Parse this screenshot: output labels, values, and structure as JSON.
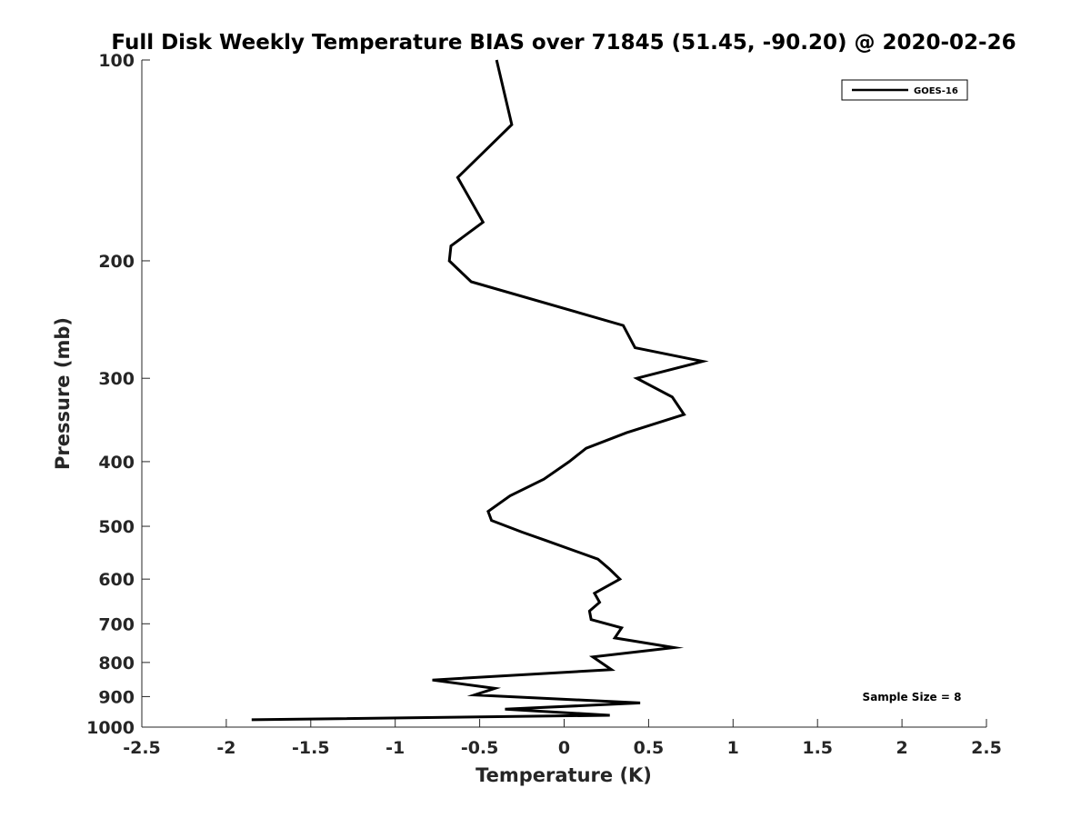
{
  "chart_data": {
    "type": "line",
    "title": "Full Disk Weekly Temperature BIAS over 71845 (51.45, -90.20) @ 2020-02-26",
    "xlabel": "Temperature (K)",
    "ylabel": "Pressure (mb)",
    "xlim": [
      -2.5,
      2.5
    ],
    "ylim": [
      100,
      1000
    ],
    "y_scale": "log",
    "y_reversed": true,
    "grid": false,
    "legend_position": "top-right",
    "x_ticks": [
      "-2.5",
      "-2",
      "-1.5",
      "-1",
      "-0.5",
      "0",
      "0.5",
      "1",
      "1.5",
      "2",
      "2.5"
    ],
    "x_tick_values": [
      -2.5,
      -2,
      -1.5,
      -1,
      -0.5,
      0,
      0.5,
      1,
      1.5,
      2,
      2.5
    ],
    "y_ticks": [
      "100",
      "200",
      "300",
      "400",
      "500",
      "600",
      "700",
      "800",
      "900",
      "1000"
    ],
    "y_tick_values": [
      100,
      200,
      300,
      400,
      500,
      600,
      700,
      800,
      900,
      1000
    ],
    "annotation": "Sample Size = 8",
    "series": [
      {
        "name": "GOES-16",
        "color": "#000000",
        "points": [
          [
            -0.4,
            100
          ],
          [
            -0.31,
            125
          ],
          [
            -0.63,
            150
          ],
          [
            -0.48,
            175
          ],
          [
            -0.67,
            190
          ],
          [
            -0.68,
            200
          ],
          [
            -0.55,
            215
          ],
          [
            0.35,
            250
          ],
          [
            0.42,
            270
          ],
          [
            0.82,
            283
          ],
          [
            0.43,
            300
          ],
          [
            0.64,
            320
          ],
          [
            0.71,
            340
          ],
          [
            0.37,
            362
          ],
          [
            0.13,
            382
          ],
          [
            0.03,
            400
          ],
          [
            -0.12,
            425
          ],
          [
            -0.32,
            450
          ],
          [
            -0.45,
            475
          ],
          [
            -0.43,
            490
          ],
          [
            -0.25,
            510
          ],
          [
            -0.11,
            525
          ],
          [
            0.2,
            560
          ],
          [
            0.27,
            580
          ],
          [
            0.33,
            600
          ],
          [
            0.18,
            630
          ],
          [
            0.21,
            650
          ],
          [
            0.15,
            670
          ],
          [
            0.16,
            690
          ],
          [
            0.34,
            710
          ],
          [
            0.3,
            735
          ],
          [
            0.65,
            760
          ],
          [
            0.17,
            785
          ],
          [
            0.28,
            820
          ],
          [
            -0.78,
            850
          ],
          [
            -0.41,
            875
          ],
          [
            -0.53,
            895
          ],
          [
            0.45,
            920
          ],
          [
            -0.35,
            940
          ],
          [
            0.27,
            960
          ],
          [
            -1.85,
            975
          ]
        ]
      }
    ]
  }
}
